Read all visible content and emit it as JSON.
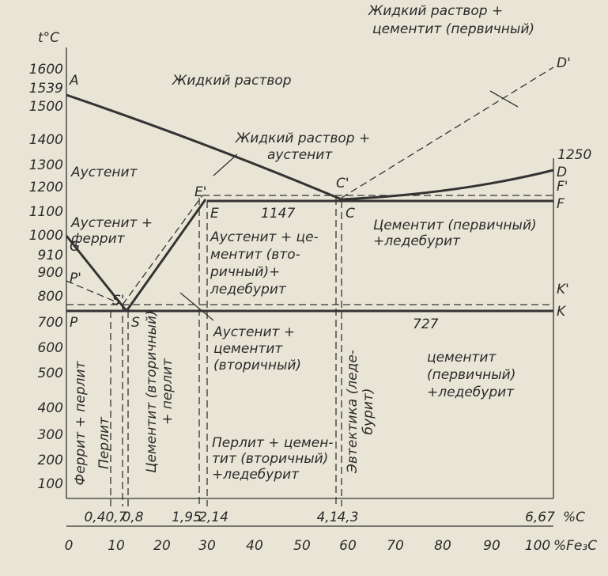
{
  "axes": {
    "y_label": "t°C",
    "y_ticks": [
      "1600",
      "1539",
      "1500",
      "1400",
      "1300",
      "1200",
      "1100",
      "1000",
      "910",
      "900",
      "800",
      "700",
      "600",
      "500",
      "400",
      "300",
      "200",
      "100"
    ],
    "x_label_c": "%C",
    "x_ticks_c": [
      "0,4",
      "0,7",
      "0,8",
      "1,95",
      "2,14",
      "4,1",
      "4,3",
      "6,67"
    ],
    "x_label_fe3c": "%Fe₃C",
    "x_ticks_fe3c": [
      "0",
      "10",
      "20",
      "30",
      "40",
      "50",
      "60",
      "70",
      "80",
      "90",
      "100"
    ]
  },
  "points": [
    "A",
    "C'",
    "C",
    "D",
    "D'",
    "E",
    "E'",
    "F",
    "F'",
    "G",
    "P",
    "P'",
    "S",
    "S'",
    "K",
    "K'"
  ],
  "isotherms": [
    "1250",
    "1147",
    "727"
  ],
  "regions": [
    [
      "Жидкий раствор"
    ],
    [
      "Жидкий раствор +",
      "аустенит"
    ],
    [
      "Жидкий раствор +",
      "цементит (первичный)"
    ],
    [
      "Аустенит"
    ],
    [
      "Аустенит +",
      "феррит"
    ],
    [
      "Аустенит + це-",
      "ментит (вто-",
      "ричный)+",
      "ледебурит"
    ],
    [
      "Цементит (первичный)",
      "+ледебурит"
    ],
    [
      "Аустенит +",
      "цементит",
      "(вторичный)"
    ],
    [
      "цементит",
      "(первичный)",
      "+ледебурит"
    ],
    [
      "Перлит + цемен-",
      "тит (вторичный)",
      "+ледебурит"
    ]
  ],
  "vertical_labels": [
    [
      "Феррит + перлит"
    ],
    [
      "Перлит"
    ],
    [
      "Цементит (вторичный)",
      "+ перлит"
    ],
    [
      "Эвтектика (леде-",
      "бурит)"
    ]
  ]
}
